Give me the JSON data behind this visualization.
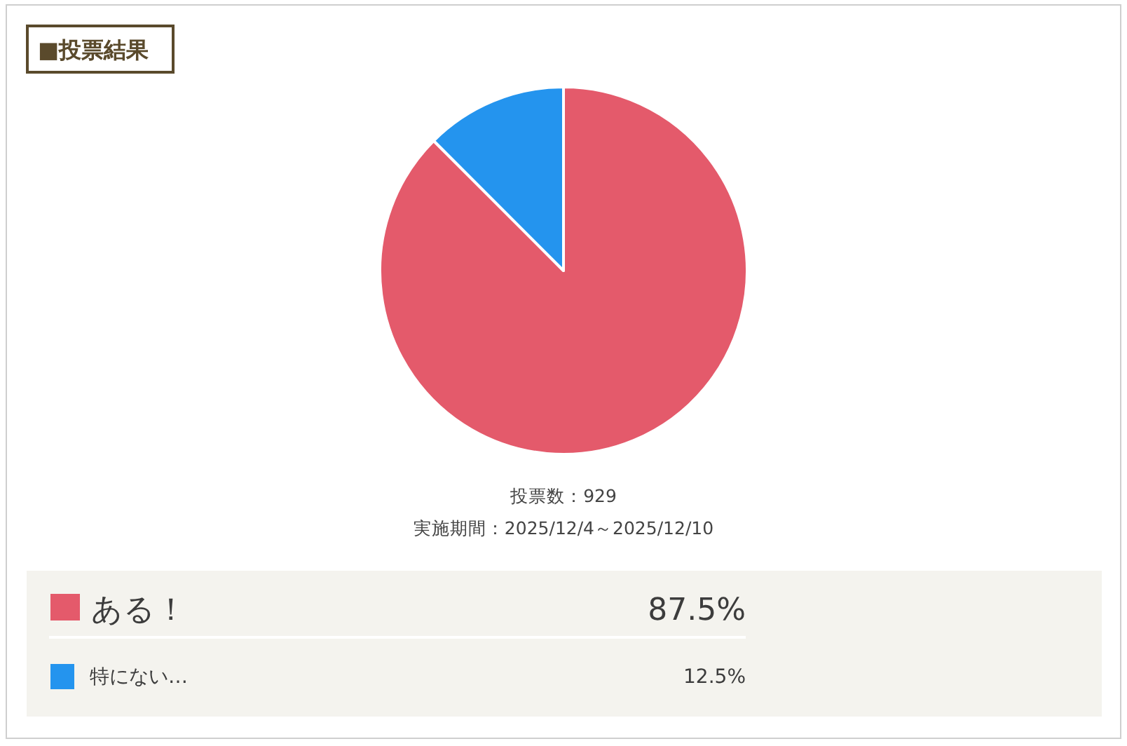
{
  "chart_data": {
    "type": "pie",
    "title": "■投票結果",
    "categories": [
      "ある！",
      "特にない…"
    ],
    "values": [
      87.5,
      12.5
    ],
    "colors": [
      "#e45a6b",
      "#2494ee"
    ],
    "value_labels": [
      "87.5%",
      "12.5%"
    ],
    "legend": "bottom",
    "annotations": [
      "投票数：929",
      "実施期間：2025/12/4～2025/12/10"
    ]
  }
}
